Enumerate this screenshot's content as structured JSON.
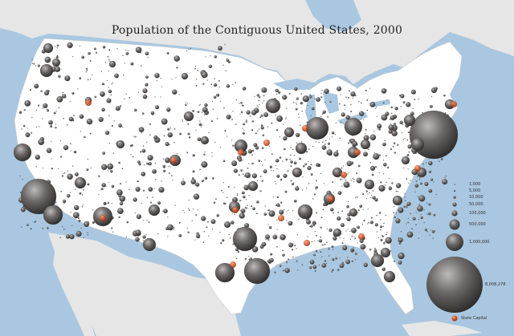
{
  "title": "Population of the Contiguous United States, 2000",
  "colors": {
    "background": "#ffffff",
    "water": "#a9c7e0",
    "foreign_land": "#e6e6e6",
    "us_land": "#ffffff",
    "population_bubble": "#5e5b5b",
    "state_capital": "#d9582a"
  },
  "legend": {
    "sizes": [
      "1,000",
      "5,000",
      "10,000",
      "50,000",
      "100,000",
      "500,000",
      "1,000,000",
      "8,008,278"
    ],
    "state_capital_label": "State Capital"
  }
}
